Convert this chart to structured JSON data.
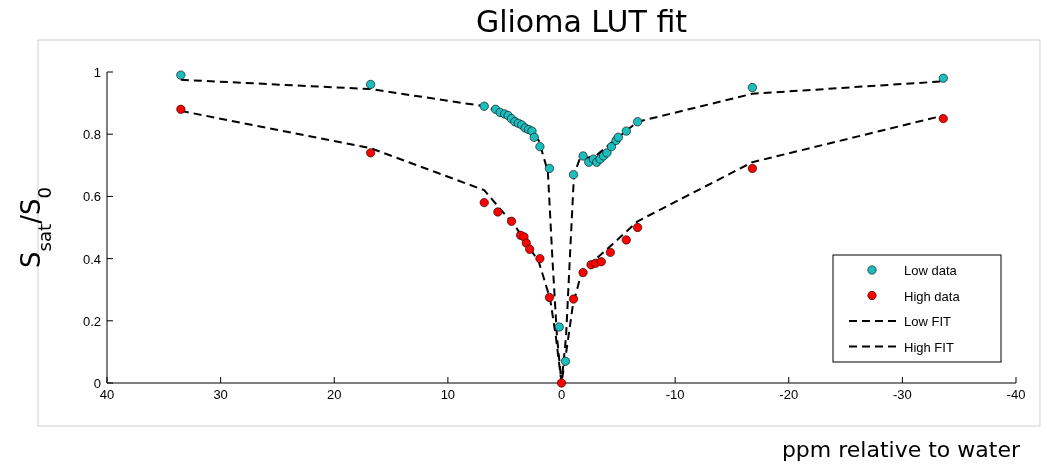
{
  "chart_data": {
    "type": "scatter",
    "title": "Glioma LUT fit",
    "xlabel": "ppm relative to water",
    "ylabel": "S$_{sat}$/S$_{0}$",
    "xlim": [
      40,
      -40
    ],
    "xticks": [
      40,
      30,
      20,
      10,
      0,
      -10,
      -20,
      -30,
      -40
    ],
    "ylim": [
      0,
      1
    ],
    "yticks": [
      0,
      0.2,
      0.4,
      0.6,
      0.8,
      1
    ],
    "grid": false,
    "legend": "bottom right",
    "series": [
      {
        "name": "Low data",
        "marker": "circle",
        "color": "#1ebdbd",
        "x": [
          33.5,
          16.8,
          6.8,
          5.8,
          5.4,
          5.0,
          4.7,
          4.4,
          4.1,
          3.8,
          3.5,
          3.2,
          2.9,
          2.6,
          2.4,
          1.9,
          1.06,
          0.2,
          -0.35,
          -1.06,
          -1.9,
          -2.4,
          -2.8,
          -3.1,
          -3.4,
          -3.7,
          -4.0,
          -4.4,
          -4.8,
          -5.0,
          -5.7,
          -6.7,
          -16.8,
          -33.6
        ],
        "values": [
          0.99,
          0.96,
          0.89,
          0.88,
          0.87,
          0.865,
          0.86,
          0.85,
          0.84,
          0.835,
          0.83,
          0.82,
          0.815,
          0.81,
          0.79,
          0.76,
          0.69,
          0.18,
          0.07,
          0.67,
          0.73,
          0.71,
          0.72,
          0.71,
          0.72,
          0.73,
          0.74,
          0.76,
          0.78,
          0.79,
          0.81,
          0.84,
          0.95,
          0.98
        ]
      },
      {
        "name": "High data",
        "marker": "circle",
        "color": "#ff0000",
        "x": [
          33.5,
          16.8,
          6.8,
          5.6,
          4.4,
          3.6,
          3.3,
          3.1,
          2.8,
          1.9,
          1.06,
          0,
          -1.06,
          -1.9,
          -2.6,
          -3.0,
          -3.5,
          -4.3,
          -5.7,
          -6.7,
          -16.8,
          -33.6
        ],
        "values": [
          0.88,
          0.74,
          0.58,
          0.55,
          0.52,
          0.475,
          0.47,
          0.45,
          0.43,
          0.4,
          0.275,
          0,
          0.27,
          0.355,
          0.38,
          0.385,
          0.39,
          0.42,
          0.46,
          0.5,
          0.69,
          0.85
        ]
      },
      {
        "name": "Low FIT",
        "type": "line",
        "line_style": "dashed",
        "color": "#000000",
        "x": [
          33.5,
          16.8,
          6.8,
          4,
          2,
          1.2,
          0.8,
          0.4,
          0,
          -0.4,
          -0.8,
          -1.1,
          -1.6,
          -3,
          -5,
          -6.7,
          -16.8,
          -33.6
        ],
        "values": [
          0.975,
          0.945,
          0.89,
          0.85,
          0.78,
          0.68,
          0.4,
          0.15,
          0,
          0.15,
          0.45,
          0.67,
          0.72,
          0.73,
          0.79,
          0.84,
          0.93,
          0.97
        ]
      },
      {
        "name": "High FIT",
        "type": "line",
        "line_style": "dashed",
        "color": "#000000",
        "x": [
          33.5,
          16.8,
          6.8,
          4,
          2,
          1,
          0.5,
          0,
          -0.5,
          -1,
          -1.8,
          -4,
          -6.7,
          -16.8,
          -33.6
        ],
        "values": [
          0.875,
          0.755,
          0.62,
          0.5,
          0.39,
          0.27,
          0.15,
          0,
          0.12,
          0.25,
          0.36,
          0.43,
          0.52,
          0.71,
          0.86
        ]
      }
    ]
  }
}
